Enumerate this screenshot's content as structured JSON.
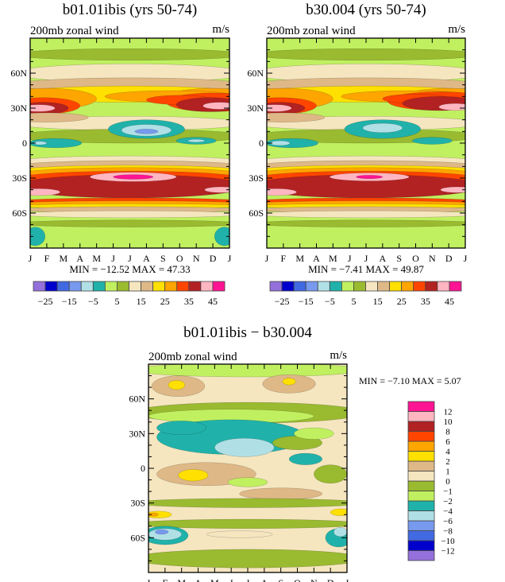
{
  "chart_data": [
    {
      "type": "heatmap",
      "subtype": "filled-contour",
      "title": "b01.01ibis (yrs 50-74)",
      "subtitle_left": "200mb zonal wind",
      "subtitle_right": "m/s",
      "x_ticks": [
        "J",
        "F",
        "M",
        "A",
        "M",
        "J",
        "J",
        "A",
        "S",
        "O",
        "N",
        "D",
        "J"
      ],
      "y_ticks": [
        {
          "lat": 60,
          "label": "60N"
        },
        {
          "lat": 30,
          "label": "30N"
        },
        {
          "lat": 0,
          "label": "0"
        },
        {
          "lat": -30,
          "label": "30S"
        },
        {
          "lat": -60,
          "label": "60S"
        }
      ],
      "xlim": [
        0,
        12
      ],
      "ylim": [
        -90,
        90
      ],
      "minmax_text": "MIN = −12.52 MAX =   47.33",
      "min": -12.52,
      "max": 47.33,
      "colorbar": {
        "orientation": "horizontal",
        "colors": [
          "#9370db",
          "#0000cd",
          "#4169e1",
          "#7799ee",
          "#b0e0e6",
          "#20b2aa",
          "#c0f060",
          "#9aba30",
          "#f5e6c0",
          "#deb887",
          "#ffe000",
          "#ffa500",
          "#ff4500",
          "#b22222",
          "#ffb6c1",
          "#ff1493"
        ],
        "boundaries": [
          -25,
          -20,
          -15,
          -10,
          -5,
          0,
          5,
          10,
          15,
          20,
          25,
          30,
          35,
          40,
          45
        ],
        "labels": [
          {
            "value": -25,
            "text": "−25"
          },
          {
            "value": -15,
            "text": "−15"
          },
          {
            "value": -5,
            "text": "−5"
          },
          {
            "value": 5,
            "text": "5"
          },
          {
            "value": 15,
            "text": "15"
          },
          {
            "value": 25,
            "text": "25"
          },
          {
            "value": 35,
            "text": "35"
          },
          {
            "value": 45,
            "text": "45"
          }
        ]
      },
      "background_level": 6,
      "regions": [
        [
          7,
          6,
          76,
          7,
          5
        ],
        [
          8,
          6,
          60,
          7,
          8
        ],
        [
          9,
          6,
          50,
          7,
          6
        ],
        [
          10,
          6,
          42,
          7,
          7
        ],
        [
          11,
          1,
          38,
          3,
          9
        ],
        [
          11,
          11,
          38,
          3,
          9
        ],
        [
          11,
          8.5,
          40,
          4,
          5
        ],
        [
          12,
          0.8,
          32,
          2.2,
          7
        ],
        [
          12,
          11,
          35,
          2.8,
          8
        ],
        [
          12,
          9,
          37,
          2,
          4
        ],
        [
          13,
          0.8,
          30,
          1.5,
          5
        ],
        [
          13,
          10.8,
          33,
          2,
          6
        ],
        [
          14,
          0.5,
          30,
          1,
          3
        ],
        [
          14,
          11.4,
          32,
          1,
          3
        ],
        [
          8,
          6,
          17,
          7,
          6
        ],
        [
          9,
          1,
          22,
          2.5,
          4
        ],
        [
          7,
          6,
          6,
          7,
          6
        ],
        [
          5,
          7,
          12,
          2.3,
          8
        ],
        [
          4,
          7,
          11,
          1.5,
          5
        ],
        [
          3,
          7,
          10,
          0.7,
          2
        ],
        [
          5,
          1.5,
          0,
          1.6,
          4
        ],
        [
          4,
          0.6,
          0,
          0.4,
          1.5
        ],
        [
          5,
          10,
          2,
          1.2,
          3
        ],
        [
          4,
          10,
          2,
          0.5,
          1.3
        ],
        [
          8,
          6,
          -16,
          7,
          5
        ],
        [
          9,
          6,
          -20,
          7,
          5
        ],
        [
          10,
          6,
          -24,
          7,
          5
        ],
        [
          11,
          6,
          -27,
          7,
          6
        ],
        [
          12,
          6,
          -31,
          7,
          7
        ],
        [
          13,
          6,
          -37,
          7,
          10
        ],
        [
          14,
          6.2,
          -29,
          2.6,
          4
        ],
        [
          15,
          6.2,
          -29,
          1.2,
          2
        ],
        [
          14,
          0.5,
          -42,
          1.3,
          3
        ],
        [
          14,
          11.5,
          -40,
          1,
          2.5
        ],
        [
          12,
          6,
          -50,
          7,
          3
        ],
        [
          11,
          6,
          -52,
          7,
          2.5
        ],
        [
          10,
          6,
          -54,
          7,
          2
        ],
        [
          9,
          6,
          -57,
          7,
          2.5
        ],
        [
          8,
          6,
          -61,
          7,
          3
        ],
        [
          7,
          6,
          -69,
          7,
          3
        ],
        [
          5,
          0.3,
          -80,
          0.6,
          8
        ],
        [
          5,
          11.7,
          -80,
          0.6,
          8
        ]
      ]
    },
    {
      "type": "heatmap",
      "subtype": "filled-contour",
      "title": "b30.004 (yrs 50-74)",
      "subtitle_left": "200mb zonal wind",
      "subtitle_right": "m/s",
      "x_ticks": [
        "J",
        "F",
        "M",
        "A",
        "M",
        "J",
        "J",
        "A",
        "S",
        "O",
        "N",
        "D",
        "J"
      ],
      "y_ticks": [
        {
          "lat": 60,
          "label": "60N"
        },
        {
          "lat": 30,
          "label": "30N"
        },
        {
          "lat": 0,
          "label": "0"
        },
        {
          "lat": -30,
          "label": "30S"
        },
        {
          "lat": -60,
          "label": "60S"
        }
      ],
      "xlim": [
        0,
        12
      ],
      "ylim": [
        -90,
        90
      ],
      "minmax_text": "MIN = −7.41 MAX =   49.87",
      "min": -7.41,
      "max": 49.87,
      "colorbar": {
        "orientation": "horizontal",
        "colors": [
          "#9370db",
          "#0000cd",
          "#4169e1",
          "#7799ee",
          "#b0e0e6",
          "#20b2aa",
          "#c0f060",
          "#9aba30",
          "#f5e6c0",
          "#deb887",
          "#ffe000",
          "#ffa500",
          "#ff4500",
          "#b22222",
          "#ffb6c1",
          "#ff1493"
        ],
        "boundaries": [
          -25,
          -20,
          -15,
          -10,
          -5,
          0,
          5,
          10,
          15,
          20,
          25,
          30,
          35,
          40,
          45
        ],
        "labels": [
          {
            "value": -25,
            "text": "−25"
          },
          {
            "value": -15,
            "text": "−15"
          },
          {
            "value": -5,
            "text": "−5"
          },
          {
            "value": 5,
            "text": "5"
          },
          {
            "value": 15,
            "text": "15"
          },
          {
            "value": 25,
            "text": "25"
          },
          {
            "value": 35,
            "text": "35"
          },
          {
            "value": 45,
            "text": "45"
          }
        ]
      },
      "background_level": 6,
      "regions": [
        [
          7,
          6,
          76,
          7,
          5
        ],
        [
          8,
          6,
          60,
          7,
          8
        ],
        [
          9,
          6,
          50,
          7,
          6
        ],
        [
          10,
          6,
          42,
          7,
          7
        ],
        [
          11,
          1,
          38,
          3,
          9
        ],
        [
          11,
          11,
          38,
          3,
          9
        ],
        [
          11,
          8.5,
          40,
          4,
          5
        ],
        [
          12,
          0.8,
          32,
          2.2,
          7
        ],
        [
          12,
          10.5,
          36,
          3.2,
          8
        ],
        [
          12,
          9,
          38,
          2,
          4
        ],
        [
          13,
          0.8,
          30,
          1.5,
          5
        ],
        [
          13,
          10.5,
          34,
          2.3,
          6
        ],
        [
          14,
          0.5,
          30,
          1,
          3
        ],
        [
          14,
          11.4,
          31,
          1,
          3
        ],
        [
          8,
          6,
          17,
          7,
          6
        ],
        [
          9,
          1,
          22,
          2.5,
          4
        ],
        [
          7,
          6,
          6,
          7,
          6
        ],
        [
          5,
          7,
          12,
          2.3,
          8
        ],
        [
          4,
          7,
          13,
          1.2,
          4
        ],
        [
          5,
          1.5,
          0,
          1.6,
          4
        ],
        [
          4,
          0.8,
          0,
          0.6,
          2
        ],
        [
          5,
          10,
          2,
          1.2,
          3
        ],
        [
          8,
          6,
          -16,
          7,
          5
        ],
        [
          9,
          6,
          -20,
          7,
          5
        ],
        [
          10,
          6,
          -24,
          7,
          5
        ],
        [
          11,
          6,
          -27,
          7,
          6
        ],
        [
          12,
          6,
          -31,
          7,
          7
        ],
        [
          13,
          6,
          -37,
          7,
          10
        ],
        [
          14,
          6.2,
          -29,
          2.4,
          3.5
        ],
        [
          15,
          6.2,
          -29,
          0.8,
          1.5
        ],
        [
          14,
          0.5,
          -42,
          1.3,
          3
        ],
        [
          14,
          11.5,
          -40,
          1,
          2.5
        ],
        [
          12,
          6,
          -50,
          7,
          3
        ],
        [
          11,
          6,
          -52,
          7,
          2.5
        ],
        [
          10,
          6,
          -54,
          7,
          2
        ],
        [
          9,
          6,
          -57,
          7,
          2.5
        ],
        [
          8,
          6,
          -61,
          7,
          3
        ],
        [
          7,
          6,
          -69,
          7,
          3
        ]
      ]
    },
    {
      "type": "heatmap",
      "subtype": "filled-contour",
      "title": "b01.01ibis − b30.004",
      "subtitle_left": "200mb zonal wind",
      "subtitle_right": "m/s",
      "x_ticks": [
        "J",
        "F",
        "M",
        "A",
        "M",
        "J",
        "J",
        "A",
        "S",
        "O",
        "N",
        "D",
        "J"
      ],
      "y_ticks": [
        {
          "lat": 60,
          "label": "60N"
        },
        {
          "lat": 30,
          "label": "30N"
        },
        {
          "lat": 0,
          "label": "0"
        },
        {
          "lat": -30,
          "label": "30S"
        },
        {
          "lat": -60,
          "label": "60S"
        }
      ],
      "xlim": [
        0,
        12
      ],
      "ylim": [
        -90,
        90
      ],
      "minmax_text": "MIN =   −7.10 MAX =    5.07",
      "min": -7.1,
      "max": 5.07,
      "colorbar": {
        "orientation": "vertical",
        "colors": [
          "#9370db",
          "#0000cd",
          "#4169e1",
          "#7799ee",
          "#b0e0e6",
          "#20b2aa",
          "#c0f060",
          "#9aba30",
          "#f5e6c0",
          "#deb887",
          "#ffe000",
          "#ffa500",
          "#ff4500",
          "#b22222",
          "#ffb6c1",
          "#ff1493"
        ],
        "boundaries": [
          -12,
          -10,
          -8,
          -6,
          -4,
          -2,
          -1,
          0,
          1,
          2,
          4,
          6,
          8,
          10,
          12
        ],
        "labels": [
          {
            "value": -12,
            "text": "−12"
          },
          {
            "value": -10,
            "text": "−10"
          },
          {
            "value": -8,
            "text": "−8"
          },
          {
            "value": -6,
            "text": "−6"
          },
          {
            "value": -4,
            "text": "−4"
          },
          {
            "value": -2,
            "text": "−2"
          },
          {
            "value": -1,
            "text": "−1"
          },
          {
            "value": 0,
            "text": "0"
          },
          {
            "value": 1,
            "text": "1"
          },
          {
            "value": 2,
            "text": "2"
          },
          {
            "value": 4,
            "text": "4"
          },
          {
            "value": 6,
            "text": "6"
          },
          {
            "value": 8,
            "text": "8"
          },
          {
            "value": 10,
            "text": "10"
          },
          {
            "value": 12,
            "text": "12"
          }
        ]
      },
      "background_level": 8,
      "regions": [
        [
          6,
          6,
          85,
          7,
          6
        ],
        [
          9,
          1.8,
          71,
          1.6,
          9
        ],
        [
          10,
          1.7,
          72,
          0.5,
          4
        ],
        [
          9,
          8.5,
          73,
          1.6,
          8
        ],
        [
          10,
          8.5,
          75,
          0.4,
          3
        ],
        [
          7,
          6,
          48,
          7,
          9
        ],
        [
          6,
          5,
          45,
          5,
          6
        ],
        [
          5,
          5,
          27,
          4.5,
          15
        ],
        [
          5,
          2,
          35,
          1.5,
          6
        ],
        [
          4,
          5.8,
          18,
          1.8,
          8
        ],
        [
          5,
          9.5,
          8,
          1,
          5
        ],
        [
          7,
          9,
          22,
          1.5,
          6
        ],
        [
          6,
          10,
          30,
          1.2,
          5
        ],
        [
          9,
          3.5,
          -5,
          3,
          10
        ],
        [
          10,
          2.7,
          -6,
          0.9,
          5
        ],
        [
          9,
          8,
          -22,
          2.5,
          5
        ],
        [
          7,
          11,
          -5,
          1,
          8
        ],
        [
          6,
          6,
          -12,
          1.2,
          4
        ],
        [
          7,
          6,
          -30,
          7,
          4
        ],
        [
          10,
          0.6,
          -40,
          0.8,
          3
        ],
        [
          11,
          0.3,
          -40,
          0.3,
          1.5
        ],
        [
          10,
          11.6,
          -38,
          0.6,
          3
        ],
        [
          7,
          6,
          -48,
          7,
          4
        ],
        [
          5,
          1,
          -58,
          1.4,
          8
        ],
        [
          4,
          1,
          -57,
          1,
          5
        ],
        [
          3,
          0.8,
          -55,
          0.4,
          2
        ],
        [
          5,
          11.5,
          -60,
          0.8,
          8
        ],
        [
          4,
          11.6,
          -55,
          0.4,
          4
        ],
        [
          8,
          5.5,
          -57,
          2,
          3
        ],
        [
          7,
          6,
          -78,
          7,
          8
        ]
      ]
    }
  ]
}
